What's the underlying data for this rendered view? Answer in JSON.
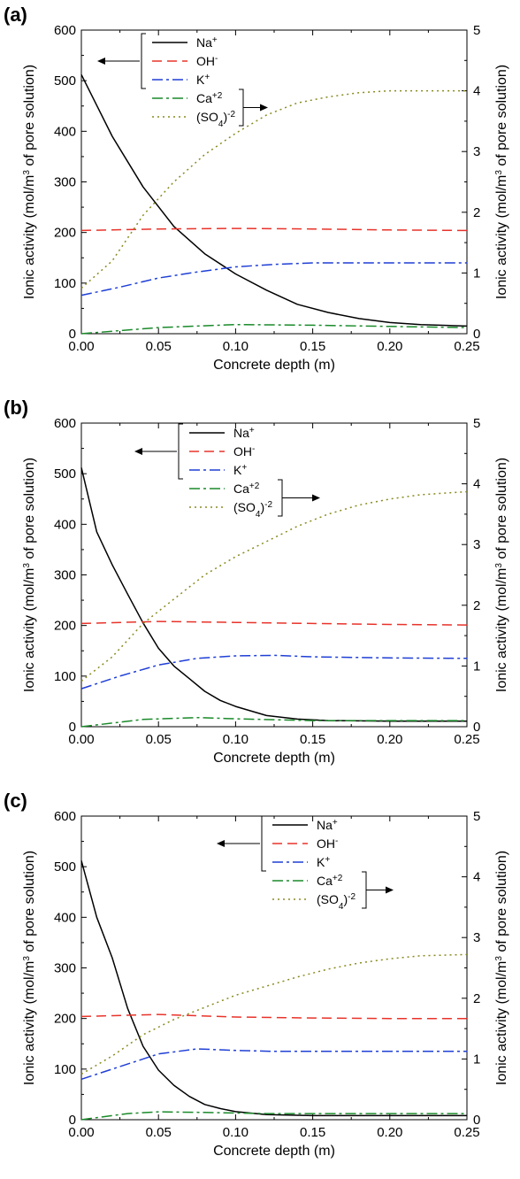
{
  "chart_data": [
    {
      "type": "line",
      "panel_label": "(a)",
      "xlabel": "Concrete depth (m)",
      "ylabel_left": "Ionic activity (mol/m3 of pore solution)",
      "ylabel_right": "Ionic activity (mol/m3 of pore solution)",
      "xlim": [
        0,
        0.25
      ],
      "ylim_left": [
        0,
        600
      ],
      "ylim_right": [
        0,
        5
      ],
      "x_ticks": [
        "0.00",
        "0.05",
        "0.10",
        "0.15",
        "0.20",
        "0.25"
      ],
      "y_ticks_left": [
        "0",
        "100",
        "200",
        "300",
        "400",
        "500",
        "600"
      ],
      "y_ticks_right": [
        "0",
        "1",
        "2",
        "3",
        "4",
        "5"
      ],
      "grid": false,
      "legend_placement": "top-center",
      "series": [
        {
          "name": "Na+",
          "axis": "left",
          "color": "#000000",
          "style": "solid",
          "points": [
            [
              0,
              512
            ],
            [
              0.02,
              390
            ],
            [
              0.04,
              290
            ],
            [
              0.06,
              212
            ],
            [
              0.08,
              158
            ],
            [
              0.1,
              118
            ],
            [
              0.12,
              86
            ],
            [
              0.14,
              58
            ],
            [
              0.16,
              42
            ],
            [
              0.18,
              30
            ],
            [
              0.2,
              22
            ],
            [
              0.22,
              18
            ],
            [
              0.25,
              15
            ]
          ]
        },
        {
          "name": "OH-",
          "axis": "left",
          "color": "#e8332a",
          "style": "dash",
          "points": [
            [
              0,
              204
            ],
            [
              0.05,
              207
            ],
            [
              0.1,
              208
            ],
            [
              0.15,
              207
            ],
            [
              0.2,
              205
            ],
            [
              0.25,
              204
            ]
          ]
        },
        {
          "name": "K+",
          "axis": "left",
          "color": "#1f3fd6",
          "style": "dashdot",
          "points": [
            [
              0,
              76
            ],
            [
              0.025,
              92
            ],
            [
              0.05,
              110
            ],
            [
              0.075,
              122
            ],
            [
              0.1,
              132
            ],
            [
              0.125,
              137
            ],
            [
              0.15,
              140
            ],
            [
              0.2,
              140
            ],
            [
              0.25,
              140
            ]
          ]
        },
        {
          "name": "Ca+2",
          "axis": "right",
          "color": "#1a8a2a",
          "style": "dashdot",
          "points": [
            [
              0,
              0.0
            ],
            [
              0.05,
              0.1
            ],
            [
              0.1,
              0.15
            ],
            [
              0.15,
              0.14
            ],
            [
              0.2,
              0.12
            ],
            [
              0.25,
              0.1
            ]
          ]
        },
        {
          "name": "(SO4)-2",
          "axis": "right",
          "color": "#8a8a20",
          "style": "dot",
          "points": [
            [
              0,
              0.75
            ],
            [
              0.02,
              1.2
            ],
            [
              0.04,
              1.95
            ],
            [
              0.06,
              2.5
            ],
            [
              0.08,
              2.95
            ],
            [
              0.1,
              3.3
            ],
            [
              0.12,
              3.6
            ],
            [
              0.14,
              3.8
            ],
            [
              0.16,
              3.9
            ],
            [
              0.18,
              3.97
            ],
            [
              0.2,
              4.0
            ],
            [
              0.25,
              4.0
            ]
          ]
        }
      ],
      "legend_layout": {
        "left_bracket_series": [
          "Na+",
          "OH-",
          "K+"
        ],
        "right_bracket_series": [
          "Ca+2",
          "(SO4)-2"
        ],
        "left_bracket_start": 0,
        "left_bracket_end": 2,
        "right_bracket_start": 3,
        "right_bracket_end": 4
      }
    },
    {
      "type": "line",
      "panel_label": "(b)",
      "xlabel": "Concrete depth (m)",
      "ylabel_left": "Ionic activity (mol/m3 of pore solution)",
      "ylabel_right": "Ionic activity (mol/m3 of pore solution)",
      "xlim": [
        0,
        0.25
      ],
      "ylim_left": [
        0,
        600
      ],
      "ylim_right": [
        0,
        5
      ],
      "x_ticks": [
        "0.00",
        "0.05",
        "0.10",
        "0.15",
        "0.20",
        "0.25"
      ],
      "y_ticks_left": [
        "0",
        "100",
        "200",
        "300",
        "400",
        "500",
        "600"
      ],
      "y_ticks_right": [
        "0",
        "1",
        "2",
        "3",
        "4",
        "5"
      ],
      "grid": false,
      "legend_placement": "top-center",
      "series": [
        {
          "name": "Na+",
          "axis": "left",
          "color": "#000000",
          "style": "solid",
          "points": [
            [
              0,
              512
            ],
            [
              0.01,
              385
            ],
            [
              0.02,
              320
            ],
            [
              0.03,
              262
            ],
            [
              0.04,
              205
            ],
            [
              0.05,
              155
            ],
            [
              0.06,
              120
            ],
            [
              0.07,
              95
            ],
            [
              0.08,
              70
            ],
            [
              0.09,
              52
            ],
            [
              0.1,
              40
            ],
            [
              0.12,
              22
            ],
            [
              0.14,
              15
            ],
            [
              0.16,
              12
            ],
            [
              0.2,
              11
            ],
            [
              0.25,
              11
            ]
          ]
        },
        {
          "name": "OH-",
          "axis": "left",
          "color": "#e8332a",
          "style": "dash",
          "points": [
            [
              0,
              204
            ],
            [
              0.05,
              208
            ],
            [
              0.1,
              206
            ],
            [
              0.15,
              204
            ],
            [
              0.2,
              202
            ],
            [
              0.25,
              201
            ]
          ]
        },
        {
          "name": "K+",
          "axis": "left",
          "color": "#1f3fd6",
          "style": "dashdot",
          "points": [
            [
              0,
              75
            ],
            [
              0.025,
              100
            ],
            [
              0.05,
              122
            ],
            [
              0.075,
              135
            ],
            [
              0.1,
              140
            ],
            [
              0.125,
              141
            ],
            [
              0.15,
              138
            ],
            [
              0.2,
              136
            ],
            [
              0.25,
              135
            ]
          ]
        },
        {
          "name": "Ca+2",
          "axis": "right",
          "color": "#1a8a2a",
          "style": "dashdot",
          "points": [
            [
              0,
              0.0
            ],
            [
              0.04,
              0.12
            ],
            [
              0.075,
              0.15
            ],
            [
              0.1,
              0.13
            ],
            [
              0.15,
              0.1
            ],
            [
              0.2,
              0.1
            ],
            [
              0.25,
              0.1
            ]
          ]
        },
        {
          "name": "(SO4)-2",
          "axis": "right",
          "color": "#8a8a20",
          "style": "dot",
          "points": [
            [
              0,
              0.75
            ],
            [
              0.02,
              1.15
            ],
            [
              0.04,
              1.7
            ],
            [
              0.06,
              2.1
            ],
            [
              0.08,
              2.5
            ],
            [
              0.1,
              2.8
            ],
            [
              0.12,
              3.05
            ],
            [
              0.14,
              3.3
            ],
            [
              0.16,
              3.5
            ],
            [
              0.18,
              3.65
            ],
            [
              0.2,
              3.75
            ],
            [
              0.22,
              3.82
            ],
            [
              0.25,
              3.87
            ]
          ]
        }
      ],
      "legend_layout": {
        "left_bracket_series": [
          "Na+",
          "OH-",
          "K+"
        ],
        "right_bracket_series": [
          "Ca+2",
          "(SO4)-2"
        ],
        "left_bracket_start": 0,
        "left_bracket_end": 2,
        "right_bracket_start": 3,
        "right_bracket_end": 4
      }
    },
    {
      "type": "line",
      "panel_label": "(c)",
      "xlabel": "Concrete depth (m)",
      "ylabel_left": "Ionic activity (mol/m3 of pore solution)",
      "ylabel_right": "Ionic activity (mol/m3 of pore solution)",
      "xlim": [
        0,
        0.25
      ],
      "ylim_left": [
        0,
        600
      ],
      "ylim_right": [
        0,
        5
      ],
      "x_ticks": [
        "0.00",
        "0.05",
        "0.10",
        "0.15",
        "0.20",
        "0.25"
      ],
      "y_ticks_left": [
        "0",
        "100",
        "200",
        "300",
        "400",
        "500",
        "600"
      ],
      "y_ticks_right": [
        "0",
        "1",
        "2",
        "3",
        "4",
        "5"
      ],
      "grid": false,
      "legend_placement": "top-right",
      "series": [
        {
          "name": "Na+",
          "axis": "left",
          "color": "#000000",
          "style": "solid",
          "points": [
            [
              0,
              512
            ],
            [
              0.01,
              400
            ],
            [
              0.02,
              320
            ],
            [
              0.03,
              220
            ],
            [
              0.04,
              145
            ],
            [
              0.05,
              98
            ],
            [
              0.06,
              68
            ],
            [
              0.07,
              46
            ],
            [
              0.08,
              30
            ],
            [
              0.09,
              22
            ],
            [
              0.1,
              16
            ],
            [
              0.12,
              10
            ],
            [
              0.15,
              8
            ],
            [
              0.2,
              8
            ],
            [
              0.25,
              8
            ]
          ]
        },
        {
          "name": "OH-",
          "axis": "left",
          "color": "#e8332a",
          "style": "dash",
          "points": [
            [
              0,
              204
            ],
            [
              0.05,
              208
            ],
            [
              0.1,
              203
            ],
            [
              0.15,
              201
            ],
            [
              0.2,
              200
            ],
            [
              0.25,
              200
            ]
          ]
        },
        {
          "name": "K+",
          "axis": "left",
          "color": "#1f3fd6",
          "style": "dashdot",
          "points": [
            [
              0,
              80
            ],
            [
              0.025,
              105
            ],
            [
              0.05,
              130
            ],
            [
              0.075,
              140
            ],
            [
              0.1,
              137
            ],
            [
              0.125,
              135
            ],
            [
              0.15,
              135
            ],
            [
              0.2,
              135
            ],
            [
              0.25,
              135
            ]
          ]
        },
        {
          "name": "Ca+2",
          "axis": "right",
          "color": "#1a8a2a",
          "style": "dashdot",
          "points": [
            [
              0,
              0.0
            ],
            [
              0.03,
              0.1
            ],
            [
              0.05,
              0.13
            ],
            [
              0.08,
              0.12
            ],
            [
              0.12,
              0.1
            ],
            [
              0.2,
              0.1
            ],
            [
              0.25,
              0.1
            ]
          ]
        },
        {
          "name": "(SO4)-2",
          "axis": "right",
          "color": "#8a8a20",
          "style": "dot",
          "points": [
            [
              0,
              0.75
            ],
            [
              0.02,
              1.05
            ],
            [
              0.04,
              1.4
            ],
            [
              0.06,
              1.65
            ],
            [
              0.08,
              1.85
            ],
            [
              0.1,
              2.05
            ],
            [
              0.12,
              2.2
            ],
            [
              0.14,
              2.35
            ],
            [
              0.16,
              2.48
            ],
            [
              0.18,
              2.58
            ],
            [
              0.2,
              2.65
            ],
            [
              0.22,
              2.7
            ],
            [
              0.25,
              2.72
            ]
          ]
        }
      ],
      "legend_layout": {
        "left_bracket_series": [
          "Na+",
          "OH-",
          "K+"
        ],
        "right_bracket_series": [
          "Ca+2",
          "(SO4)-2"
        ],
        "left_bracket_start": 0,
        "left_bracket_end": 2,
        "right_bracket_start": 3,
        "right_bracket_end": 4
      }
    }
  ]
}
